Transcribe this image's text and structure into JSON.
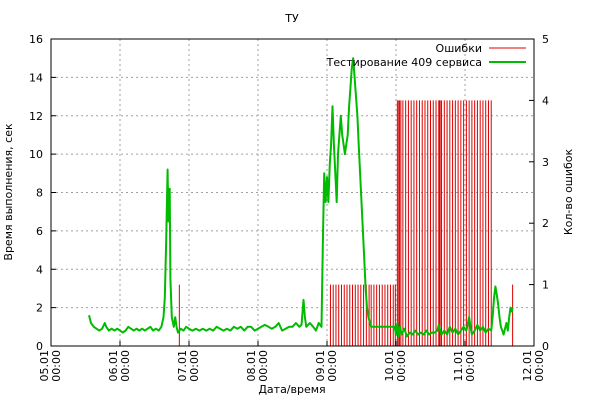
{
  "chart_data": {
    "type": "line",
    "title": "ТУ",
    "xlabel": "Дата/время",
    "ylabel": "Время выполнения, сек",
    "y2label": "Кол-во ошибок",
    "xlim": [
      0,
      7
    ],
    "ylim": [
      0,
      16
    ],
    "y2lim": [
      0,
      5
    ],
    "grid": true,
    "legend_position": "top-right",
    "x_tick_labels": [
      {
        "date": "05.01",
        "time": "00:00"
      },
      {
        "date": "06.01",
        "time": "00:00"
      },
      {
        "date": "07.01",
        "time": "00:00"
      },
      {
        "date": "08.01",
        "time": "00:00"
      },
      {
        "date": "09.01",
        "time": "00:00"
      },
      {
        "date": "10.01",
        "time": "00:00"
      },
      {
        "date": "11.01",
        "time": "00:00"
      },
      {
        "date": "12.01",
        "time": "00:00"
      }
    ],
    "y_ticks": [
      "0",
      "2",
      "4",
      "6",
      "8",
      "10",
      "12",
      "14",
      "16"
    ],
    "y2_ticks": [
      "0",
      "1",
      "2",
      "3",
      "4",
      "5"
    ],
    "series": [
      {
        "name": "Ошибки",
        "type": "impulse",
        "axis": "y2",
        "color": "#dd0000",
        "points": [
          [
            1.86,
            1
          ],
          [
            4.05,
            1
          ],
          [
            4.09,
            1
          ],
          [
            4.13,
            1
          ],
          [
            4.17,
            1
          ],
          [
            4.21,
            1
          ],
          [
            4.25,
            1
          ],
          [
            4.29,
            1
          ],
          [
            4.33,
            1
          ],
          [
            4.37,
            1
          ],
          [
            4.41,
            1
          ],
          [
            4.45,
            1
          ],
          [
            4.49,
            1
          ],
          [
            4.53,
            1
          ],
          [
            4.57,
            1
          ],
          [
            4.61,
            1
          ],
          [
            4.64,
            1
          ],
          [
            4.68,
            1
          ],
          [
            4.72,
            1
          ],
          [
            4.76,
            1
          ],
          [
            4.8,
            1
          ],
          [
            4.84,
            1
          ],
          [
            4.88,
            1
          ],
          [
            4.92,
            1
          ],
          [
            4.96,
            1
          ],
          [
            4.99,
            1
          ],
          [
            5.02,
            4
          ],
          [
            5.04,
            4
          ],
          [
            5.05,
            4
          ],
          [
            5.07,
            4
          ],
          [
            5.1,
            4
          ],
          [
            5.14,
            4
          ],
          [
            5.18,
            4
          ],
          [
            5.22,
            4
          ],
          [
            5.26,
            4
          ],
          [
            5.3,
            4
          ],
          [
            5.34,
            4
          ],
          [
            5.38,
            4
          ],
          [
            5.42,
            4
          ],
          [
            5.46,
            4
          ],
          [
            5.5,
            4
          ],
          [
            5.54,
            4
          ],
          [
            5.58,
            4
          ],
          [
            5.62,
            4
          ],
          [
            5.63,
            4
          ],
          [
            5.64,
            4
          ],
          [
            5.66,
            4
          ],
          [
            5.7,
            4
          ],
          [
            5.74,
            4
          ],
          [
            5.78,
            4
          ],
          [
            5.82,
            4
          ],
          [
            5.86,
            4
          ],
          [
            5.9,
            4
          ],
          [
            5.94,
            4
          ],
          [
            5.98,
            4
          ],
          [
            6.02,
            4
          ],
          [
            6.06,
            4
          ],
          [
            6.1,
            4
          ],
          [
            6.14,
            4
          ],
          [
            6.18,
            4
          ],
          [
            6.22,
            4
          ],
          [
            6.26,
            4
          ],
          [
            6.3,
            4
          ],
          [
            6.34,
            4
          ],
          [
            6.38,
            4
          ],
          [
            6.69,
            1
          ]
        ]
      },
      {
        "name": "Тестирование 409 сервиса",
        "type": "line",
        "axis": "y",
        "color": "#00bb00",
        "points": [
          [
            0.55,
            1.6
          ],
          [
            0.58,
            1.2
          ],
          [
            0.62,
            1.0
          ],
          [
            0.66,
            0.9
          ],
          [
            0.7,
            0.8
          ],
          [
            0.74,
            0.9
          ],
          [
            0.78,
            1.2
          ],
          [
            0.8,
            1.0
          ],
          [
            0.84,
            0.8
          ],
          [
            0.88,
            0.9
          ],
          [
            0.92,
            0.8
          ],
          [
            0.96,
            0.9
          ],
          [
            1.0,
            0.8
          ],
          [
            1.04,
            0.7
          ],
          [
            1.08,
            0.8
          ],
          [
            1.12,
            1.0
          ],
          [
            1.16,
            0.9
          ],
          [
            1.2,
            0.8
          ],
          [
            1.24,
            0.9
          ],
          [
            1.28,
            0.8
          ],
          [
            1.32,
            0.9
          ],
          [
            1.36,
            0.8
          ],
          [
            1.4,
            0.9
          ],
          [
            1.44,
            1.0
          ],
          [
            1.48,
            0.8
          ],
          [
            1.52,
            0.9
          ],
          [
            1.56,
            0.8
          ],
          [
            1.6,
            1.0
          ],
          [
            1.63,
            1.5
          ],
          [
            1.65,
            2.5
          ],
          [
            1.67,
            5.5
          ],
          [
            1.69,
            9.2
          ],
          [
            1.7,
            6.5
          ],
          [
            1.72,
            8.2
          ],
          [
            1.73,
            3.5
          ],
          [
            1.75,
            1.5
          ],
          [
            1.78,
            1.0
          ],
          [
            1.8,
            1.5
          ],
          [
            1.82,
            1.0
          ],
          [
            1.84,
            0.7
          ],
          [
            1.88,
            0.9
          ],
          [
            1.92,
            0.8
          ],
          [
            1.96,
            1.0
          ],
          [
            2.0,
            0.9
          ],
          [
            2.05,
            0.8
          ],
          [
            2.1,
            0.9
          ],
          [
            2.15,
            0.8
          ],
          [
            2.2,
            0.9
          ],
          [
            2.25,
            0.8
          ],
          [
            2.3,
            0.9
          ],
          [
            2.35,
            0.8
          ],
          [
            2.4,
            1.0
          ],
          [
            2.45,
            0.9
          ],
          [
            2.5,
            0.8
          ],
          [
            2.55,
            0.9
          ],
          [
            2.6,
            0.8
          ],
          [
            2.65,
            1.0
          ],
          [
            2.7,
            0.9
          ],
          [
            2.75,
            1.0
          ],
          [
            2.8,
            0.8
          ],
          [
            2.85,
            1.0
          ],
          [
            2.9,
            1.0
          ],
          [
            2.95,
            0.8
          ],
          [
            3.0,
            0.9
          ],
          [
            3.05,
            1.0
          ],
          [
            3.1,
            1.1
          ],
          [
            3.15,
            1.0
          ],
          [
            3.2,
            0.9
          ],
          [
            3.25,
            1.0
          ],
          [
            3.3,
            1.2
          ],
          [
            3.35,
            0.8
          ],
          [
            3.4,
            0.9
          ],
          [
            3.45,
            1.0
          ],
          [
            3.5,
            1.0
          ],
          [
            3.55,
            1.2
          ],
          [
            3.6,
            1.0
          ],
          [
            3.63,
            1.1
          ],
          [
            3.66,
            2.4
          ],
          [
            3.68,
            1.5
          ],
          [
            3.7,
            1.0
          ],
          [
            3.75,
            1.2
          ],
          [
            3.8,
            1.0
          ],
          [
            3.84,
            0.8
          ],
          [
            3.88,
            1.2
          ],
          [
            3.92,
            1.0
          ],
          [
            3.94,
            5.5
          ],
          [
            3.96,
            9.0
          ],
          [
            3.98,
            7.5
          ],
          [
            4.0,
            8.8
          ],
          [
            4.02,
            7.5
          ],
          [
            4.04,
            9.5
          ],
          [
            4.06,
            10.5
          ],
          [
            4.08,
            12.5
          ],
          [
            4.1,
            10.5
          ],
          [
            4.12,
            9.0
          ],
          [
            4.14,
            7.5
          ],
          [
            4.16,
            10.0
          ],
          [
            4.18,
            11.0
          ],
          [
            4.2,
            12.0
          ],
          [
            4.22,
            11.0
          ],
          [
            4.24,
            10.5
          ],
          [
            4.26,
            10.0
          ],
          [
            4.28,
            10.5
          ],
          [
            4.3,
            11.0
          ],
          [
            4.32,
            12.5
          ],
          [
            4.34,
            13.5
          ],
          [
            4.36,
            14.5
          ],
          [
            4.38,
            15.0
          ],
          [
            4.4,
            14.0
          ],
          [
            4.42,
            13.0
          ],
          [
            4.44,
            12.0
          ],
          [
            4.46,
            10.5
          ],
          [
            4.48,
            9.0
          ],
          [
            4.5,
            7.5
          ],
          [
            4.52,
            6.0
          ],
          [
            4.54,
            4.5
          ],
          [
            4.56,
            3.0
          ],
          [
            4.58,
            2.0
          ],
          [
            4.6,
            1.5
          ],
          [
            4.64,
            1.0
          ],
          [
            4.7,
            1.0
          ],
          [
            4.8,
            1.0
          ],
          [
            4.9,
            1.0
          ],
          [
            4.98,
            1.0
          ],
          [
            5.0,
            0.6
          ],
          [
            5.02,
            1.2
          ],
          [
            5.04,
            0.5
          ],
          [
            5.06,
            1.0
          ],
          [
            5.08,
            0.6
          ],
          [
            5.12,
            0.9
          ],
          [
            5.16,
            0.5
          ],
          [
            5.2,
            0.7
          ],
          [
            5.24,
            0.6
          ],
          [
            5.28,
            0.8
          ],
          [
            5.32,
            0.6
          ],
          [
            5.36,
            0.7
          ],
          [
            5.4,
            0.6
          ],
          [
            5.44,
            0.8
          ],
          [
            5.48,
            0.6
          ],
          [
            5.52,
            0.7
          ],
          [
            5.56,
            0.7
          ],
          [
            5.6,
            0.8
          ],
          [
            5.62,
            1.1
          ],
          [
            5.64,
            0.8
          ],
          [
            5.66,
            0.6
          ],
          [
            5.7,
            0.8
          ],
          [
            5.74,
            0.6
          ],
          [
            5.78,
            1.0
          ],
          [
            5.82,
            0.7
          ],
          [
            5.86,
            0.9
          ],
          [
            5.9,
            0.6
          ],
          [
            5.94,
            0.8
          ],
          [
            5.98,
            1.0
          ],
          [
            6.02,
            0.8
          ],
          [
            6.06,
            1.5
          ],
          [
            6.08,
            1.0
          ],
          [
            6.1,
            0.6
          ],
          [
            6.14,
            0.8
          ],
          [
            6.18,
            1.1
          ],
          [
            6.22,
            0.8
          ],
          [
            6.26,
            1.0
          ],
          [
            6.3,
            0.7
          ],
          [
            6.34,
            0.9
          ],
          [
            6.38,
            0.8
          ],
          [
            6.4,
            1.5
          ],
          [
            6.42,
            2.5
          ],
          [
            6.44,
            3.1
          ],
          [
            6.46,
            2.7
          ],
          [
            6.48,
            2.2
          ],
          [
            6.5,
            1.5
          ],
          [
            6.52,
            1.0
          ],
          [
            6.54,
            0.8
          ],
          [
            6.56,
            0.6
          ],
          [
            6.58,
            0.9
          ],
          [
            6.6,
            1.2
          ],
          [
            6.62,
            0.8
          ],
          [
            6.64,
            1.5
          ],
          [
            6.66,
            2.0
          ],
          [
            6.68,
            1.8
          ],
          [
            6.69,
            2.0
          ]
        ]
      }
    ]
  }
}
